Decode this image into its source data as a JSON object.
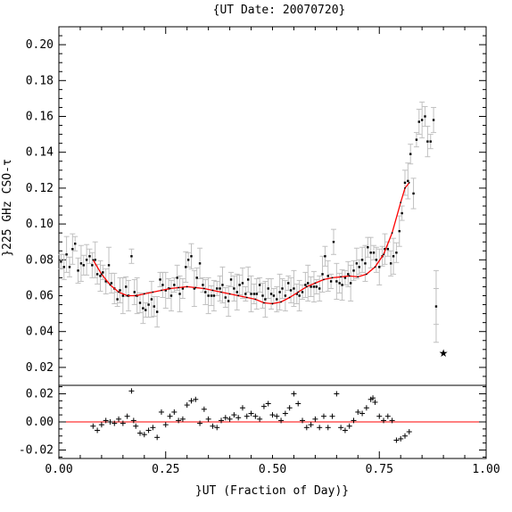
{
  "chart_data": [
    {
      "type": "scatter",
      "title": "{UT Date: 20070720}",
      "xlabel": "",
      "ylabel": "}225 GHz CSO-τ",
      "xlim": [
        0.0,
        1.0
      ],
      "ylim": [
        0.01,
        0.21
      ],
      "y_ticks": [
        "0.02",
        "0.04",
        "0.06",
        "0.08",
        "0.10",
        "0.12",
        "0.14",
        "0.16",
        "0.18",
        "0.20"
      ],
      "y_tick_values": [
        0.02,
        0.04,
        0.06,
        0.08,
        0.1,
        0.12,
        0.14,
        0.16,
        0.18,
        0.2
      ],
      "points": [
        [
          0.005,
          0.079
        ],
        [
          0.012,
          0.076
        ],
        [
          0.018,
          0.083
        ],
        [
          0.025,
          0.076
        ],
        [
          0.032,
          0.086
        ],
        [
          0.038,
          0.089
        ],
        [
          0.045,
          0.074
        ],
        [
          0.052,
          0.078
        ],
        [
          0.058,
          0.077
        ],
        [
          0.065,
          0.08
        ],
        [
          0.072,
          0.082
        ],
        [
          0.078,
          0.077
        ],
        [
          0.085,
          0.08
        ],
        [
          0.09,
          0.072
        ],
        [
          0.097,
          0.071
        ],
        [
          0.103,
          0.073
        ],
        [
          0.11,
          0.068
        ],
        [
          0.117,
          0.077
        ],
        [
          0.123,
          0.067
        ],
        [
          0.13,
          0.064
        ],
        [
          0.137,
          0.058
        ],
        [
          0.143,
          0.063
        ],
        [
          0.15,
          0.06
        ],
        [
          0.157,
          0.065
        ],
        [
          0.163,
          0.06
        ],
        [
          0.17,
          0.082
        ],
        [
          0.177,
          0.062
        ],
        [
          0.183,
          0.06
        ],
        [
          0.19,
          0.056
        ],
        [
          0.197,
          0.053
        ],
        [
          0.203,
          0.052
        ],
        [
          0.21,
          0.055
        ],
        [
          0.217,
          0.058
        ],
        [
          0.223,
          0.054
        ],
        [
          0.23,
          0.051
        ],
        [
          0.237,
          0.069
        ],
        [
          0.243,
          0.066
        ],
        [
          0.25,
          0.063
        ],
        [
          0.257,
          0.064
        ],
        [
          0.263,
          0.06
        ],
        [
          0.27,
          0.066
        ],
        [
          0.277,
          0.07
        ],
        [
          0.283,
          0.061
        ],
        [
          0.29,
          0.064
        ],
        [
          0.297,
          0.076
        ],
        [
          0.303,
          0.08
        ],
        [
          0.31,
          0.082
        ],
        [
          0.317,
          0.064
        ],
        [
          0.323,
          0.07
        ],
        [
          0.33,
          0.078
        ],
        [
          0.337,
          0.066
        ],
        [
          0.343,
          0.062
        ],
        [
          0.35,
          0.06
        ],
        [
          0.357,
          0.06
        ],
        [
          0.363,
          0.06
        ],
        [
          0.37,
          0.064
        ],
        [
          0.377,
          0.064
        ],
        [
          0.383,
          0.066
        ],
        [
          0.39,
          0.059
        ],
        [
          0.397,
          0.057
        ],
        [
          0.403,
          0.069
        ],
        [
          0.41,
          0.064
        ],
        [
          0.417,
          0.062
        ],
        [
          0.423,
          0.066
        ],
        [
          0.43,
          0.067
        ],
        [
          0.437,
          0.061
        ],
        [
          0.443,
          0.069
        ],
        [
          0.45,
          0.061
        ],
        [
          0.457,
          0.061
        ],
        [
          0.463,
          0.061
        ],
        [
          0.47,
          0.066
        ],
        [
          0.477,
          0.06
        ],
        [
          0.483,
          0.058
        ],
        [
          0.49,
          0.064
        ],
        [
          0.497,
          0.061
        ],
        [
          0.503,
          0.06
        ],
        [
          0.51,
          0.058
        ],
        [
          0.517,
          0.062
        ],
        [
          0.523,
          0.064
        ],
        [
          0.53,
          0.06
        ],
        [
          0.537,
          0.067
        ],
        [
          0.543,
          0.063
        ],
        [
          0.55,
          0.064
        ],
        [
          0.557,
          0.061
        ],
        [
          0.563,
          0.06
        ],
        [
          0.57,
          0.062
        ],
        [
          0.577,
          0.066
        ],
        [
          0.583,
          0.067
        ],
        [
          0.59,
          0.065
        ],
        [
          0.597,
          0.065
        ],
        [
          0.603,
          0.065
        ],
        [
          0.61,
          0.064
        ],
        [
          0.617,
          0.072
        ],
        [
          0.623,
          0.082
        ],
        [
          0.63,
          0.071
        ],
        [
          0.637,
          0.068
        ],
        [
          0.643,
          0.09
        ],
        [
          0.65,
          0.068
        ],
        [
          0.657,
          0.067
        ],
        [
          0.663,
          0.066
        ],
        [
          0.67,
          0.07
        ],
        [
          0.677,
          0.072
        ],
        [
          0.683,
          0.067
        ],
        [
          0.69,
          0.074
        ],
        [
          0.697,
          0.078
        ],
        [
          0.703,
          0.076
        ],
        [
          0.71,
          0.08
        ],
        [
          0.717,
          0.078
        ],
        [
          0.723,
          0.087
        ],
        [
          0.73,
          0.084
        ],
        [
          0.737,
          0.084
        ],
        [
          0.743,
          0.08
        ],
        [
          0.75,
          0.076
        ],
        [
          0.757,
          0.082
        ],
        [
          0.763,
          0.086
        ],
        [
          0.77,
          0.086
        ],
        [
          0.777,
          0.078
        ],
        [
          0.783,
          0.082
        ],
        [
          0.79,
          0.084
        ],
        [
          0.797,
          0.096
        ],
        [
          0.803,
          0.106
        ],
        [
          0.81,
          0.123
        ],
        [
          0.817,
          0.124
        ],
        [
          0.823,
          0.139
        ],
        [
          0.83,
          0.117
        ],
        [
          0.837,
          0.147
        ],
        [
          0.843,
          0.157
        ],
        [
          0.85,
          0.158
        ],
        [
          0.857,
          0.16
        ],
        [
          0.863,
          0.146
        ],
        [
          0.87,
          0.146
        ],
        [
          0.877,
          0.158
        ],
        [
          0.883,
          0.054
        ]
      ],
      "outlier": [
        0.9,
        0.028
      ],
      "fit_curve": [
        [
          0.08,
          0.08
        ],
        [
          0.1,
          0.072
        ],
        [
          0.12,
          0.066
        ],
        [
          0.14,
          0.062
        ],
        [
          0.16,
          0.06
        ],
        [
          0.18,
          0.06
        ],
        [
          0.2,
          0.061
        ],
        [
          0.22,
          0.062
        ],
        [
          0.24,
          0.063
        ],
        [
          0.26,
          0.064
        ],
        [
          0.28,
          0.0645
        ],
        [
          0.3,
          0.065
        ],
        [
          0.32,
          0.0645
        ],
        [
          0.34,
          0.064
        ],
        [
          0.36,
          0.063
        ],
        [
          0.38,
          0.062
        ],
        [
          0.4,
          0.061
        ],
        [
          0.42,
          0.06
        ],
        [
          0.44,
          0.059
        ],
        [
          0.46,
          0.058
        ],
        [
          0.48,
          0.056
        ],
        [
          0.5,
          0.0555
        ],
        [
          0.52,
          0.0565
        ],
        [
          0.54,
          0.059
        ],
        [
          0.56,
          0.062
        ],
        [
          0.58,
          0.065
        ],
        [
          0.6,
          0.067
        ],
        [
          0.62,
          0.069
        ],
        [
          0.64,
          0.07
        ],
        [
          0.66,
          0.0705
        ],
        [
          0.68,
          0.071
        ],
        [
          0.7,
          0.0705
        ],
        [
          0.72,
          0.072
        ],
        [
          0.74,
          0.076
        ],
        [
          0.76,
          0.083
        ],
        [
          0.78,
          0.095
        ],
        [
          0.8,
          0.112
        ],
        [
          0.81,
          0.12
        ],
        [
          0.82,
          0.123
        ]
      ]
    },
    {
      "type": "scatter",
      "xlabel": "}UT (Fraction of Day)}",
      "ylabel": "",
      "xlim": [
        0.0,
        1.0
      ],
      "ylim": [
        -0.026,
        0.026
      ],
      "x_ticks": [
        "0.00",
        "0.25",
        "0.50",
        "0.75",
        "1.00"
      ],
      "x_tick_values": [
        0.0,
        0.25,
        0.5,
        0.75,
        1.0
      ],
      "y_ticks": [
        "-0.02",
        "0.00",
        "0.02"
      ],
      "y_tick_values": [
        -0.02,
        0.0,
        0.02
      ],
      "zero_line": 0.0,
      "points": [
        [
          0.08,
          -0.003
        ],
        [
          0.09,
          -0.006
        ],
        [
          0.1,
          -0.002
        ],
        [
          0.11,
          0.001
        ],
        [
          0.12,
          0.0
        ],
        [
          0.13,
          -0.001
        ],
        [
          0.14,
          0.002
        ],
        [
          0.15,
          -0.001
        ],
        [
          0.16,
          0.004
        ],
        [
          0.17,
          0.022
        ],
        [
          0.175,
          0.001
        ],
        [
          0.18,
          -0.003
        ],
        [
          0.19,
          -0.008
        ],
        [
          0.2,
          -0.009
        ],
        [
          0.21,
          -0.006
        ],
        [
          0.22,
          -0.004
        ],
        [
          0.23,
          -0.011
        ],
        [
          0.24,
          0.007
        ],
        [
          0.25,
          -0.002
        ],
        [
          0.26,
          0.004
        ],
        [
          0.27,
          0.007
        ],
        [
          0.28,
          0.001
        ],
        [
          0.29,
          0.002
        ],
        [
          0.3,
          0.012
        ],
        [
          0.31,
          0.015
        ],
        [
          0.32,
          0.016
        ],
        [
          0.33,
          -0.001
        ],
        [
          0.34,
          0.009
        ],
        [
          0.35,
          0.002
        ],
        [
          0.36,
          -0.003
        ],
        [
          0.37,
          -0.004
        ],
        [
          0.38,
          0.001
        ],
        [
          0.39,
          0.003
        ],
        [
          0.4,
          0.002
        ],
        [
          0.41,
          0.005
        ],
        [
          0.42,
          0.003
        ],
        [
          0.43,
          0.01
        ],
        [
          0.44,
          0.004
        ],
        [
          0.45,
          0.006
        ],
        [
          0.46,
          0.004
        ],
        [
          0.47,
          0.002
        ],
        [
          0.48,
          0.011
        ],
        [
          0.49,
          0.013
        ],
        [
          0.5,
          0.005
        ],
        [
          0.51,
          0.004
        ],
        [
          0.52,
          0.001
        ],
        [
          0.53,
          0.006
        ],
        [
          0.54,
          0.01
        ],
        [
          0.55,
          0.02
        ],
        [
          0.56,
          0.013
        ],
        [
          0.57,
          0.001
        ],
        [
          0.58,
          -0.004
        ],
        [
          0.59,
          -0.002
        ],
        [
          0.6,
          0.002
        ],
        [
          0.61,
          -0.004
        ],
        [
          0.62,
          0.004
        ],
        [
          0.63,
          -0.004
        ],
        [
          0.64,
          0.004
        ],
        [
          0.65,
          0.02
        ],
        [
          0.66,
          -0.004
        ],
        [
          0.67,
          -0.006
        ],
        [
          0.68,
          -0.003
        ],
        [
          0.69,
          0.001
        ],
        [
          0.7,
          0.007
        ],
        [
          0.71,
          0.006
        ],
        [
          0.72,
          0.01
        ],
        [
          0.73,
          0.016
        ],
        [
          0.735,
          0.017
        ],
        [
          0.74,
          0.014
        ],
        [
          0.75,
          0.004
        ],
        [
          0.76,
          0.001
        ],
        [
          0.77,
          0.004
        ],
        [
          0.78,
          0.001
        ],
        [
          0.79,
          -0.013
        ],
        [
          0.8,
          -0.012
        ],
        [
          0.81,
          -0.01
        ],
        [
          0.82,
          -0.007
        ]
      ]
    }
  ],
  "colors": {
    "fit": "#ff0000",
    "errorbar": "#c0c0c0",
    "axis": "#000000",
    "point": "#000000"
  }
}
